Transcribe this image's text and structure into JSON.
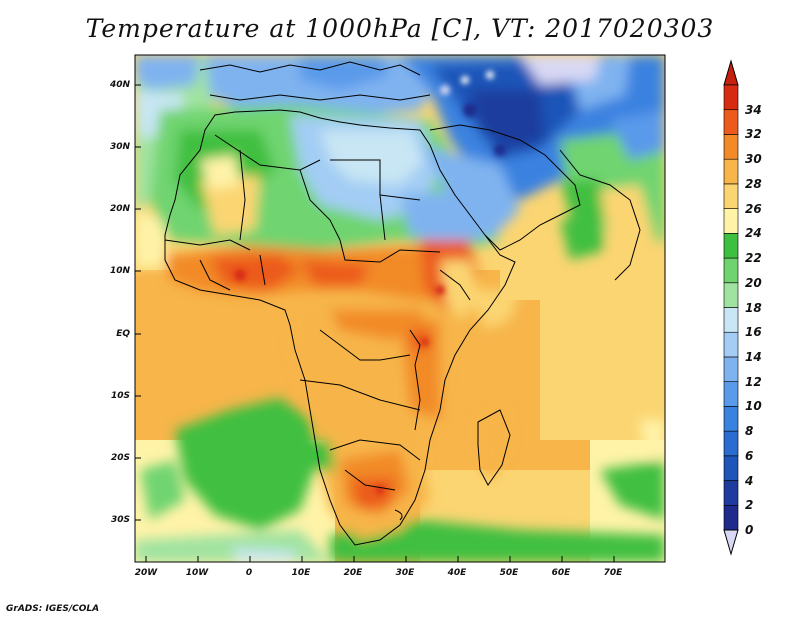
{
  "title": "Temperature at 1000hPa [C], VT: 2017020303",
  "credit": "GrADS: IGES/COLA",
  "latitude_labels": [
    "40N",
    "30N",
    "20N",
    "10N",
    "EQ",
    "10S",
    "20S",
    "30S"
  ],
  "longitude_labels": [
    "20W",
    "10W",
    "0",
    "10E",
    "20E",
    "30E",
    "40E",
    "50E",
    "60E",
    "70E"
  ],
  "colorbar": {
    "levels": [
      "0",
      "2",
      "4",
      "6",
      "8",
      "10",
      "12",
      "14",
      "16",
      "18",
      "20",
      "22",
      "24",
      "26",
      "28",
      "30",
      "32",
      "34"
    ],
    "colors": [
      "#1e2a8c",
      "#1e3c9e",
      "#1f55b8",
      "#2a6cd0",
      "#3a82e0",
      "#5a9aea",
      "#7fb3f0",
      "#a3cdf4",
      "#c8e6f4",
      "#a0e3a0",
      "#6fd46f",
      "#3fbf3f",
      "#fff3a8",
      "#fbd572",
      "#f7b54a",
      "#f28a28",
      "#ec5a1c",
      "#d62a12"
    ],
    "under_color": "#d8d8f4",
    "over_color": "#c8200e"
  },
  "chart_data": {
    "type": "heatmap",
    "title": "Temperature at 1000hPa [C], VT: 2017020303",
    "variable": "Temperature at 1000hPa",
    "units": "C",
    "valid_time": "2017020303",
    "lon_range": [
      -22,
      80
    ],
    "lat_range": [
      -37,
      45
    ],
    "lon_ticks": [
      -20,
      -10,
      0,
      10,
      20,
      30,
      40,
      50,
      60,
      70
    ],
    "lat_ticks": [
      40,
      30,
      20,
      10,
      0,
      -10,
      -20,
      -30
    ],
    "colorbar_min": 0,
    "colorbar_max": 34,
    "colorbar_interval": 2
  }
}
